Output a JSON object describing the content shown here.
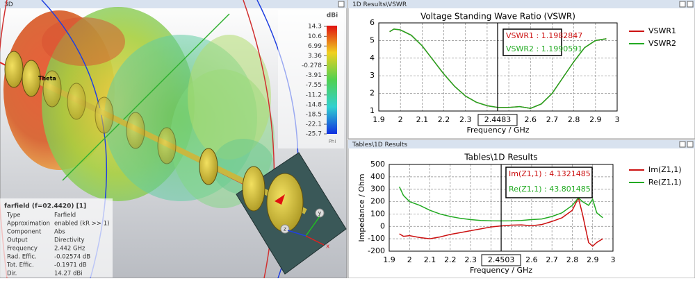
{
  "panel_3d": {
    "title": "3D",
    "colorbar": {
      "title": "dBi",
      "lim": [
        -25.7,
        14.3
      ],
      "ticks": [
        14.3,
        10.6,
        6.99,
        3.36,
        -0.278,
        -3.91,
        -7.55,
        -11.2,
        -14.8,
        -18.5,
        -22.1,
        -25.7
      ],
      "footer": "Phi"
    },
    "theta_label": "Theta",
    "axes": [
      "x",
      "y",
      "z"
    ],
    "info": {
      "title": "farfield (f=02.4420) [1]",
      "rows": [
        [
          "Type",
          "Farfield"
        ],
        [
          "Approximation",
          "enabled (kR >> 1)"
        ],
        [
          "Component",
          "Abs"
        ],
        [
          "Output",
          "Directivity"
        ],
        [
          "Frequency",
          "2.442 GHz"
        ],
        [
          "Rad. Effic.",
          "-0.02574 dB"
        ],
        [
          "Tot. Effic.",
          "-0.1971 dB"
        ],
        [
          "Dir.",
          "14.27 dBi"
        ]
      ]
    }
  },
  "charts": [
    {
      "window_title": "1D Results\\VSWR",
      "type": "line",
      "title": "Voltage Standing Wave Ratio (VSWR)",
      "xlabel": "Frequency / GHz",
      "x": [
        1.95,
        1.97,
        2.0,
        2.05,
        2.1,
        2.15,
        2.2,
        2.25,
        2.3,
        2.35,
        2.4,
        2.45,
        2.5,
        2.55,
        2.6,
        2.65,
        2.7,
        2.75,
        2.8,
        2.85,
        2.9,
        2.95
      ],
      "series": [
        {
          "name": "VSWR1",
          "color": "#cc1111",
          "values": [
            5.5,
            5.65,
            5.6,
            5.3,
            4.7,
            3.9,
            3.1,
            2.4,
            1.85,
            1.5,
            1.3,
            1.2,
            1.2,
            1.25,
            1.15,
            1.4,
            2.0,
            2.9,
            3.8,
            4.6,
            5.0,
            5.1
          ]
        },
        {
          "name": "VSWR2",
          "color": "#22aa22",
          "values": [
            5.5,
            5.65,
            5.6,
            5.3,
            4.7,
            3.9,
            3.1,
            2.4,
            1.85,
            1.5,
            1.3,
            1.2,
            1.2,
            1.25,
            1.15,
            1.4,
            2.0,
            2.9,
            3.8,
            4.6,
            5.0,
            5.1
          ]
        }
      ],
      "xlim": [
        1.9,
        3
      ],
      "ylim": [
        1,
        6
      ],
      "xticks": [
        1.9,
        2,
        2.1,
        2.2,
        2.3,
        2.4,
        2.5,
        2.6,
        2.7,
        2.8,
        2.9,
        3
      ],
      "yticks": [
        1,
        2,
        3,
        4,
        5,
        6
      ],
      "grid": true,
      "marker": {
        "x": 2.4483,
        "readouts": [
          "VSWR1 : 1.1982847",
          "VSWR2 : 1.1990591"
        ]
      }
    },
    {
      "window_title": "Tables\\1D Results",
      "type": "line",
      "title": "Tables\\1D Results",
      "xlabel": "Frequency / GHz",
      "ylabel": "Impedance / Ohm",
      "x": [
        1.95,
        1.97,
        2.0,
        2.05,
        2.1,
        2.15,
        2.2,
        2.25,
        2.3,
        2.35,
        2.4,
        2.45,
        2.5,
        2.55,
        2.6,
        2.65,
        2.7,
        2.75,
        2.8,
        2.83,
        2.85,
        2.88,
        2.9,
        2.92,
        2.95
      ],
      "series": [
        {
          "name": "Im(Z1,1)",
          "color": "#cc1111",
          "values": [
            -60,
            -80,
            -75,
            -90,
            -100,
            -85,
            -65,
            -50,
            -35,
            -20,
            -5,
            4,
            10,
            12,
            5,
            15,
            40,
            70,
            130,
            230,
            100,
            -130,
            -160,
            -130,
            -100
          ]
        },
        {
          "name": "Re(Z1,1)",
          "color": "#22aa22",
          "values": [
            320,
            250,
            200,
            170,
            130,
            100,
            80,
            65,
            55,
            48,
            45,
            44,
            45,
            48,
            55,
            60,
            80,
            110,
            170,
            230,
            200,
            170,
            220,
            110,
            70
          ]
        }
      ],
      "xlim": [
        1.9,
        3
      ],
      "ylim": [
        -200,
        500
      ],
      "xticks": [
        1.9,
        2,
        2.1,
        2.2,
        2.3,
        2.4,
        2.5,
        2.6,
        2.7,
        2.8,
        2.9,
        3
      ],
      "yticks": [
        -200,
        -100,
        0,
        100,
        200,
        300,
        400,
        500
      ],
      "grid": true,
      "marker": {
        "x": 2.4503,
        "readouts": [
          "Im(Z1,1) : 4.1321485",
          "Re(Z1,1) : 43.801485"
        ]
      }
    }
  ]
}
